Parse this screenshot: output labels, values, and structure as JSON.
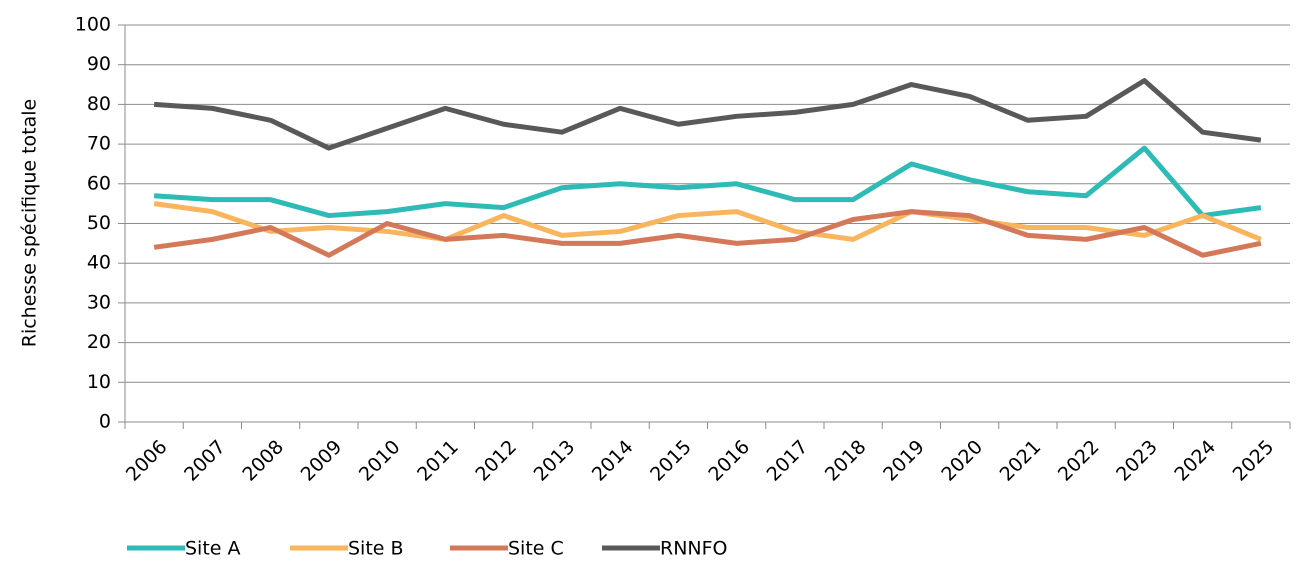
{
  "chart_data": {
    "type": "line",
    "y_label": "Richesse spécifique totale",
    "categories": [
      "2006",
      "2007",
      "2008",
      "2009",
      "2010",
      "2011",
      "2012",
      "2013",
      "2014",
      "2015",
      "2016",
      "2017",
      "2018",
      "2019",
      "2020",
      "2021",
      "2022",
      "2023",
      "2024",
      "2025"
    ],
    "series": [
      {
        "name": "Site A",
        "color": "#2ebab5",
        "values": [
          57,
          56,
          56,
          52,
          53,
          55,
          54,
          59,
          60,
          59,
          60,
          56,
          56,
          65,
          61,
          58,
          57,
          69,
          52,
          54
        ]
      },
      {
        "name": "Site B",
        "color": "#f9b55e",
        "values": [
          55,
          53,
          48,
          49,
          48,
          46,
          52,
          47,
          48,
          52,
          53,
          48,
          46,
          53,
          51,
          49,
          49,
          47,
          52,
          46
        ]
      },
      {
        "name": "Site C",
        "color": "#d4785a",
        "values": [
          44,
          46,
          49,
          42,
          50,
          46,
          47,
          45,
          45,
          47,
          45,
          46,
          51,
          53,
          52,
          47,
          46,
          49,
          42,
          45
        ]
      },
      {
        "name": "RNNFO",
        "color": "#595959",
        "values": [
          80,
          79,
          76,
          69,
          74,
          79,
          75,
          73,
          79,
          75,
          77,
          78,
          80,
          85,
          82,
          76,
          77,
          86,
          73,
          71
        ]
      }
    ],
    "ylim": [
      0,
      100
    ],
    "yticks": [
      0,
      10,
      20,
      30,
      40,
      50,
      60,
      70,
      80,
      90,
      100
    ],
    "grid": true,
    "legend": "bottom"
  }
}
